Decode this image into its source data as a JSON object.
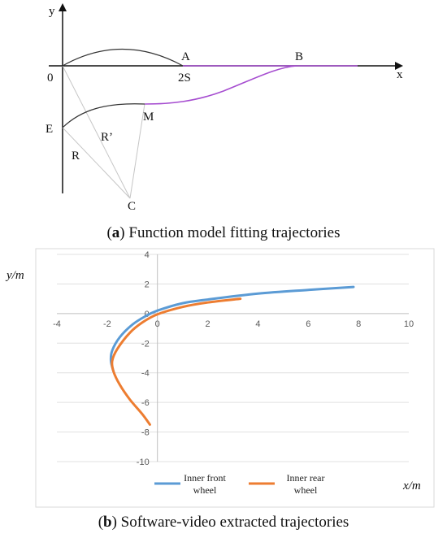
{
  "figure_a": {
    "caption_letter": "a",
    "caption_text": " Function model fitting trajectories",
    "labels": {
      "y": "y",
      "x": "x",
      "origin": "0",
      "A": "A",
      "two_s": "2S",
      "B": "B",
      "M": "M",
      "E": "E",
      "R_prime": "R’",
      "R": "R",
      "C": "C"
    },
    "colors": {
      "black_curve": "#333333",
      "fitted_curve": "#a64dd0",
      "guide_lines": "#c0c0c0"
    }
  },
  "figure_b": {
    "caption_letter": "b",
    "caption_text": " Software-video extracted trajectories"
  },
  "chart_data": {
    "type": "line",
    "xlabel": "x/m",
    "ylabel": "y/m",
    "xlim": [
      -4,
      10
    ],
    "ylim": [
      -10,
      4
    ],
    "x_ticks": [
      "-4",
      "-2",
      "0",
      "2",
      "4",
      "6",
      "8",
      "10"
    ],
    "y_ticks": [
      "4",
      "2",
      "0",
      "-2",
      "-4",
      "-6",
      "-8",
      "-10"
    ],
    "grid": "horizontal",
    "legend_position": "bottom",
    "series": [
      {
        "name_line1": "Inner front",
        "name_line2": "wheel",
        "color": "#5b9bd5",
        "points": [
          [
            7.8,
            1.8
          ],
          [
            6,
            1.6
          ],
          [
            4,
            1.35
          ],
          [
            2,
            0.95
          ],
          [
            1,
            0.7
          ],
          [
            0,
            0.2
          ],
          [
            -0.5,
            -0.2
          ],
          [
            -1,
            -0.75
          ],
          [
            -1.5,
            -1.6
          ],
          [
            -1.8,
            -2.5
          ],
          [
            -1.85,
            -3.2
          ],
          [
            -1.75,
            -3.9
          ]
        ]
      },
      {
        "name_line1": "Inner rear",
        "name_line2": "wheel",
        "color": "#ed7d31",
        "points": [
          [
            3.3,
            1.0
          ],
          [
            2,
            0.75
          ],
          [
            1,
            0.45
          ],
          [
            0,
            -0.05
          ],
          [
            -0.6,
            -0.6
          ],
          [
            -1.1,
            -1.3
          ],
          [
            -1.6,
            -2.4
          ],
          [
            -1.8,
            -3.2
          ],
          [
            -1.75,
            -3.9
          ],
          [
            -1.5,
            -4.8
          ],
          [
            -1.1,
            -5.8
          ],
          [
            -0.6,
            -6.8
          ],
          [
            -0.3,
            -7.5
          ]
        ]
      }
    ]
  }
}
